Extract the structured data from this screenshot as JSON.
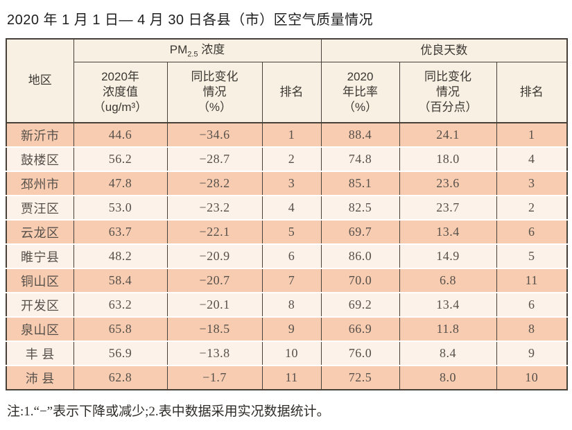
{
  "title": "2020 年 1 月 1 日— 4 月 30 日各县（市）区空气质量情况",
  "footnote": "注:1.“−”表示下降或减少;2.表中数据采用实况数据统计。",
  "colors": {
    "row_salmon": "#f8ccb1",
    "row_light": "#fdf2ea",
    "header_bg": "#f8f1e3",
    "border": "#474039",
    "title_text": "#1d1d1d",
    "data_text": "#56504a"
  },
  "table": {
    "group_headers": {
      "pm_prefix": "PM",
      "pm_sub": "2.5",
      "pm_suffix": " 浓度",
      "good_days": "优良天数"
    },
    "sub_headers": {
      "region": "地区",
      "pm_value": "2020年\n浓度值\n（ug/m³）",
      "pm_change": "同比变化\n情况\n（%）",
      "pm_rank": "排名",
      "good_rate": "2020\n年比率\n（%）",
      "good_change": "同比变化\n情况\n（百分点）",
      "good_rank": "排名"
    },
    "rows": [
      {
        "region": "新沂市",
        "pm_value": "44.6",
        "pm_change": "−34.6",
        "pm_rank": "1",
        "good_rate": "88.4",
        "good_change": "24.1",
        "good_rank": "1"
      },
      {
        "region": "鼓楼区",
        "pm_value": "56.2",
        "pm_change": "−28.7",
        "pm_rank": "2",
        "good_rate": "74.8",
        "good_change": "18.0",
        "good_rank": "4"
      },
      {
        "region": "邳州市",
        "pm_value": "47.8",
        "pm_change": "−28.2",
        "pm_rank": "3",
        "good_rate": "85.1",
        "good_change": "23.6",
        "good_rank": "3"
      },
      {
        "region": "贾汪区",
        "pm_value": "53.0",
        "pm_change": "−23.2",
        "pm_rank": "4",
        "good_rate": "82.5",
        "good_change": "23.7",
        "good_rank": "2"
      },
      {
        "region": "云龙区",
        "pm_value": "63.7",
        "pm_change": "−22.1",
        "pm_rank": "5",
        "good_rate": "69.7",
        "good_change": "13.4",
        "good_rank": "6"
      },
      {
        "region": "睢宁县",
        "pm_value": "48.2",
        "pm_change": "−20.9",
        "pm_rank": "6",
        "good_rate": "86.0",
        "good_change": "14.9",
        "good_rank": "5"
      },
      {
        "region": "铜山区",
        "pm_value": "58.4",
        "pm_change": "−20.7",
        "pm_rank": "7",
        "good_rate": "70.0",
        "good_change": "6.8",
        "good_rank": "11"
      },
      {
        "region": "开发区",
        "pm_value": "63.2",
        "pm_change": "−20.1",
        "pm_rank": "8",
        "good_rate": "69.2",
        "good_change": "13.4",
        "good_rank": "6"
      },
      {
        "region": "泉山区",
        "pm_value": "65.8",
        "pm_change": "−18.5",
        "pm_rank": "9",
        "good_rate": "66.9",
        "good_change": "11.8",
        "good_rank": "8"
      },
      {
        "region": "丰 县",
        "pm_value": "56.9",
        "pm_change": "−13.8",
        "pm_rank": "10",
        "good_rate": "76.0",
        "good_change": "8.4",
        "good_rank": "9"
      },
      {
        "region": "沛 县",
        "pm_value": "62.8",
        "pm_change": "−1.7",
        "pm_rank": "11",
        "good_rate": "72.5",
        "good_change": "8.0",
        "good_rank": "10"
      }
    ]
  }
}
